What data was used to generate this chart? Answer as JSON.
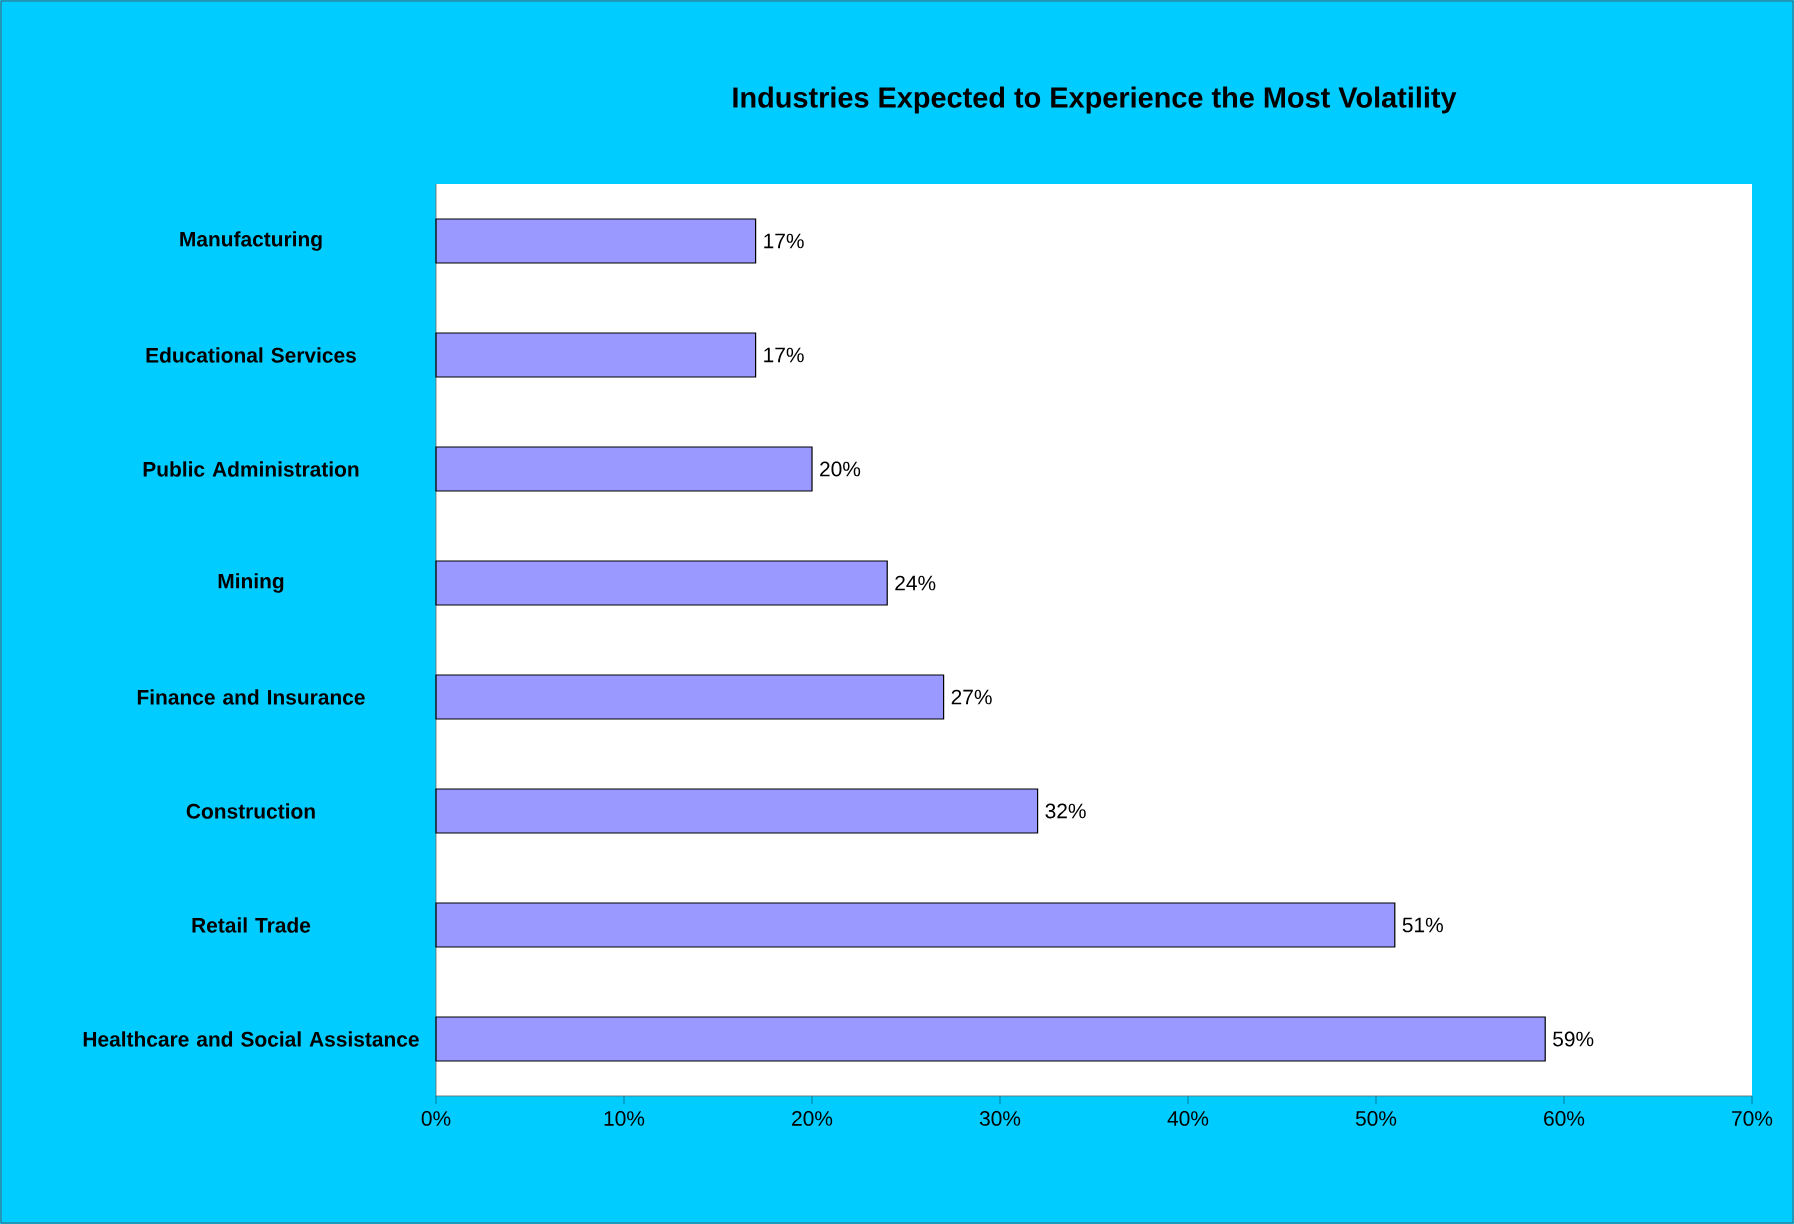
{
  "chart_data": {
    "type": "bar",
    "orientation": "horizontal",
    "title": "Industries Expected to Experience the Most Volatility",
    "categories": [
      "Manufacturing",
      "Educational Services",
      "Public Administration",
      "Mining",
      "Finance and Insurance",
      "Construction",
      "Retail Trade",
      "Healthcare and Social Assistance"
    ],
    "values": [
      17,
      17,
      20,
      24,
      27,
      32,
      51,
      59
    ],
    "value_labels": [
      "17%",
      "17%",
      "20%",
      "24%",
      "27%",
      "32%",
      "51%",
      "59%"
    ],
    "color": "#9999ff",
    "xlim": [
      0,
      70
    ],
    "xticks": [
      {
        "value": 0,
        "label": "0%"
      },
      {
        "value": 10,
        "label": "10%"
      },
      {
        "value": 20,
        "label": "20%"
      },
      {
        "value": 30,
        "label": "30%"
      },
      {
        "value": 40,
        "label": "40%"
      },
      {
        "value": 50,
        "label": "50%"
      },
      {
        "value": 60,
        "label": "60%"
      },
      {
        "value": 70,
        "label": "70%"
      }
    ]
  }
}
